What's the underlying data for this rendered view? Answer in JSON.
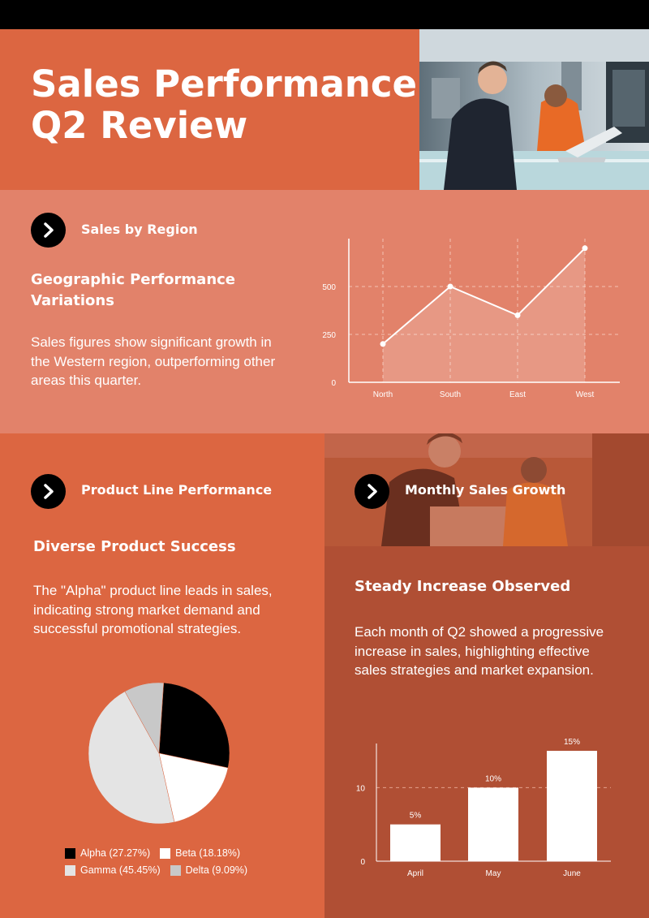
{
  "header": {
    "title_line1": "Sales Performance",
    "title_line2": "Q2 Review"
  },
  "colors": {
    "primary": "#dc6641",
    "region_bg": "#e2826a",
    "monthly_bg": "#b04f34",
    "dark": "#000000",
    "white": "#ffffff"
  },
  "region": {
    "section_title": "Sales by Region",
    "subheading": "Geographic Performance Variations",
    "body": "Sales figures show significant growth in the Western region, outperforming other areas this quarter."
  },
  "product": {
    "section_title": "Product Line Performance",
    "subheading": "Diverse Product Success",
    "body": "The \"Alpha\" product line leads in sales, indicating strong market demand and successful promotional strategies."
  },
  "monthly": {
    "section_title": "Monthly Sales Growth",
    "subheading": "Steady Increase Observed",
    "body": "Each month of Q2 showed a progressive increase in sales, highlighting effective sales strategies and market expansion."
  },
  "chart_data": [
    {
      "id": "region",
      "type": "area",
      "categories": [
        "North",
        "South",
        "East",
        "West"
      ],
      "values": [
        200,
        500,
        350,
        700
      ],
      "yticks": [
        0,
        250,
        500
      ],
      "ylim": [
        0,
        750
      ],
      "grid": true
    },
    {
      "id": "product",
      "type": "pie",
      "labels": [
        "Alpha",
        "Beta",
        "Gamma",
        "Delta"
      ],
      "values": [
        27.27,
        18.18,
        45.45,
        9.09
      ],
      "colors": [
        "#000000",
        "#ffffff",
        "#e4e4e4",
        "#c8c8c8"
      ],
      "legend": [
        "Alpha (27.27%)",
        "Beta (18.18%)",
        "Gamma (45.45%)",
        "Delta (9.09%)"
      ],
      "legend_position": "bottom"
    },
    {
      "id": "monthly",
      "type": "bar",
      "categories": [
        "April",
        "May",
        "June"
      ],
      "values": [
        5,
        10,
        15
      ],
      "data_labels": [
        "5%",
        "10%",
        "15%"
      ],
      "yticks": [
        0,
        10
      ],
      "ylim": [
        0,
        16
      ],
      "grid": true
    }
  ]
}
